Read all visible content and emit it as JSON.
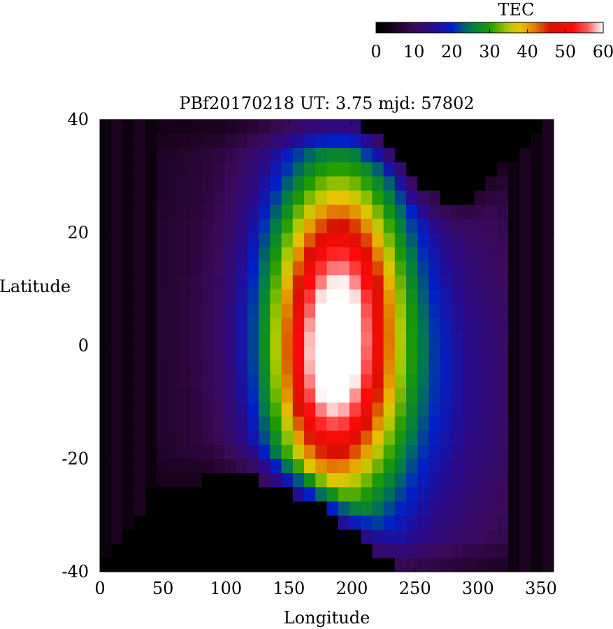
{
  "chart_data": {
    "type": "heatmap",
    "title": "PBf20170218  UT: 3.75  mjd: 57802",
    "xlabel": "Longitude",
    "ylabel": "Latitude",
    "xlim": [
      0,
      360
    ],
    "ylim": [
      -40,
      40
    ],
    "x_ticks": [
      "0",
      "50",
      "100",
      "150",
      "200",
      "250",
      "300",
      "350"
    ],
    "x_tick_values": [
      0,
      50,
      100,
      150,
      200,
      250,
      300,
      350
    ],
    "y_ticks": [
      "40",
      "20",
      "0",
      "-20",
      "-40"
    ],
    "y_tick_values": [
      40,
      20,
      0,
      -20,
      -40
    ],
    "colorbar": {
      "label": "TEC",
      "range": [
        0,
        60
      ],
      "ticks": [
        "0",
        "10",
        "20",
        "30",
        "40",
        "50",
        "60"
      ],
      "tick_values": [
        0,
        10,
        20,
        30,
        40,
        50,
        60
      ],
      "colormap_stops": [
        {
          "value": 0,
          "color": "#000000"
        },
        {
          "value": 5,
          "color": "#1c0320"
        },
        {
          "value": 10,
          "color": "#3a0a5a"
        },
        {
          "value": 15,
          "color": "#2a0a8a"
        },
        {
          "value": 20,
          "color": "#0020c8"
        },
        {
          "value": 25,
          "color": "#007a4a"
        },
        {
          "value": 30,
          "color": "#1e9c00"
        },
        {
          "value": 35,
          "color": "#aac800"
        },
        {
          "value": 38,
          "color": "#e6c400"
        },
        {
          "value": 42,
          "color": "#e07800"
        },
        {
          "value": 46,
          "color": "#d81000"
        },
        {
          "value": 52,
          "color": "#ff0a0a"
        },
        {
          "value": 56,
          "color": "#ff6060"
        },
        {
          "value": 60,
          "color": "#ffffff"
        }
      ]
    },
    "grid": false,
    "no_data_color": "#000000",
    "features": [
      {
        "type": "gaussian",
        "center": [
          185,
          3
        ],
        "sigma": [
          40,
          22
        ],
        "amplitude": 44
      },
      {
        "type": "gaussian",
        "center": [
          180,
          -9
        ],
        "sigma": [
          26,
          12
        ],
        "amplitude": 9
      },
      {
        "type": "gaussian",
        "center": [
          200,
          13
        ],
        "sigma": [
          24,
          14
        ],
        "amplitude": 5
      },
      {
        "type": "gaussian",
        "center": [
          250,
          -10
        ],
        "sigma": [
          70,
          28
        ],
        "amplitude": 9
      },
      {
        "type": "gaussian",
        "center": [
          185,
          5
        ],
        "sigma": [
          160,
          50
        ],
        "amplitude": 6
      }
    ],
    "no_data_boundaries": {
      "top_edge_by_longitude": [
        {
          "lon": 0,
          "lat": 40
        },
        {
          "lon": 40,
          "lat": 40
        },
        {
          "lon": 50,
          "lat": 40
        },
        {
          "lon": 200,
          "lat": 40
        },
        {
          "lon": 225,
          "lat": 36
        },
        {
          "lon": 235,
          "lat": 33
        },
        {
          "lon": 245,
          "lat": 30
        },
        {
          "lon": 260,
          "lat": 27
        },
        {
          "lon": 280,
          "lat": 25
        },
        {
          "lon": 295,
          "lat": 26
        },
        {
          "lon": 310,
          "lat": 30
        },
        {
          "lon": 330,
          "lat": 34
        },
        {
          "lon": 360,
          "lat": 40
        }
      ],
      "bottom_edge_by_longitude": [
        {
          "lon": 0,
          "lat": -40
        },
        {
          "lon": 40,
          "lat": -26
        },
        {
          "lon": 70,
          "lat": -25
        },
        {
          "lon": 90,
          "lat": -23
        },
        {
          "lon": 120,
          "lat": -23
        },
        {
          "lon": 145,
          "lat": -25
        },
        {
          "lon": 165,
          "lat": -27
        },
        {
          "lon": 185,
          "lat": -30
        },
        {
          "lon": 205,
          "lat": -34
        },
        {
          "lon": 225,
          "lat": -38
        },
        {
          "lon": 240,
          "lat": -40
        },
        {
          "lon": 360,
          "lat": -40
        }
      ],
      "left_band_lon_max": 45,
      "right_band_lon_min": 325
    }
  }
}
